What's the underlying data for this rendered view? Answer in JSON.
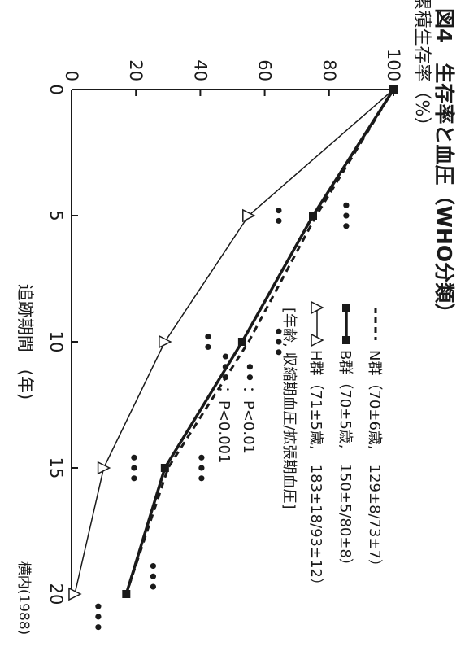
{
  "figure": {
    "title": "図4　生存率と血圧（WHO分類）",
    "source": "横内(1988)"
  },
  "chart_data": {
    "type": "line",
    "xlabel": "追跡期間　(年)",
    "ylabel": "累積生存率（%）",
    "xlim": [
      0,
      20
    ],
    "ylim": [
      0,
      100
    ],
    "x_ticks": [
      "0",
      "5",
      "10",
      "15",
      "20"
    ],
    "y_ticks": [
      "0",
      "20",
      "40",
      "60",
      "80",
      "100"
    ],
    "grid": false,
    "legend_position": "top-right",
    "series": [
      {
        "key": "N",
        "name": "N群（70±6歳,　129±8/73±7）",
        "style": "dashed",
        "marker": "none",
        "x": [
          0,
          5,
          10,
          15,
          20
        ],
        "y": [
          100,
          76,
          55,
          30,
          17
        ]
      },
      {
        "key": "B",
        "name": "B群（70±5歳,　150±5/80±8）",
        "style": "solid-bold",
        "marker": "square",
        "x": [
          0,
          5,
          10,
          15,
          20
        ],
        "y": [
          100,
          75,
          53,
          29,
          17
        ]
      },
      {
        "key": "H",
        "name": "H群（71±5歳,　183±18/93±12）",
        "style": "solid-thin",
        "marker": "triangle-open",
        "x": [
          0,
          5,
          10,
          15,
          20
        ],
        "y": [
          100,
          55,
          29,
          10,
          1
        ]
      }
    ],
    "legend_note": "[年齢,  収縮期血圧/拡張期血圧]",
    "significance": [
      {
        "dots": "••",
        "label": "：P<0.01"
      },
      {
        "dots": "•••",
        "label": "：P<0.001"
      }
    ],
    "annotations": [
      {
        "text": "•••",
        "x": 5,
        "y": 85
      },
      {
        "text": "••",
        "x": 5,
        "y": 64
      },
      {
        "text": "•••",
        "x": 10,
        "y": 64
      },
      {
        "text": "••",
        "x": 10,
        "y": 42
      },
      {
        "text": "•••",
        "x": 15,
        "y": 40
      },
      {
        "text": "•••",
        "x": 15,
        "y": 19
      },
      {
        "text": "•••",
        "x": 19.3,
        "y": 25
      },
      {
        "text": "•••",
        "x": 20.9,
        "y": 8
      }
    ]
  }
}
